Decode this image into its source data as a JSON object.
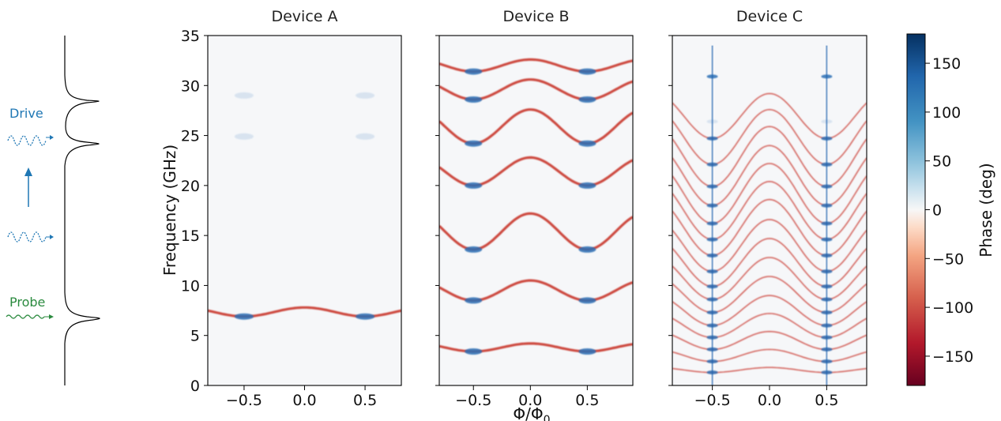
{
  "schematic": {
    "drive_label": "Drive",
    "probe_label": "Probe",
    "drive_color": "#1f77b4",
    "probe_color": "#2a8a3e"
  },
  "colorbar": {
    "label": "Phase (deg)",
    "ticks": [
      "150",
      "100",
      "50",
      "0",
      "−50",
      "−100",
      "−150"
    ],
    "tick_values": [
      150,
      100,
      50,
      0,
      -50,
      -100,
      -150
    ],
    "range": [
      -180,
      180
    ],
    "colormap": "RdBu"
  },
  "shared": {
    "ylabel": "Frequency (GHz)",
    "xlabel": "Φ/Φ₀",
    "yticks": [
      "0",
      "5",
      "10",
      "15",
      "20",
      "25",
      "30",
      "35"
    ],
    "xticks": [
      "−0.5",
      "0.0",
      "0.5"
    ]
  },
  "chart_data": [
    {
      "type": "heatmap",
      "title": "Device A",
      "xlim": [
        -0.8,
        0.8
      ],
      "ylim": [
        0,
        35
      ],
      "bands": [
        {
          "f0": 7.8,
          "amp": 0.9,
          "style": "red"
        },
        {
          "f0": 29.0,
          "amp": 0.0,
          "style": "faint"
        },
        {
          "f0": 24.9,
          "amp": 0.0,
          "style": "faint"
        }
      ],
      "anticrossings": [
        -0.5,
        0.5
      ]
    },
    {
      "type": "heatmap",
      "title": "Device B",
      "xlim": [
        -0.8,
        0.9
      ],
      "ylim": [
        0,
        35
      ],
      "bands": [
        {
          "f0": 4.2,
          "amp": 0.8,
          "style": "red"
        },
        {
          "f0": 10.5,
          "amp": 2.0,
          "style": "red"
        },
        {
          "f0": 17.2,
          "amp": 3.6,
          "style": "red"
        },
        {
          "f0": 22.8,
          "amp": 2.8,
          "style": "red"
        },
        {
          "f0": 27.6,
          "amp": 3.4,
          "style": "red"
        },
        {
          "f0": 30.6,
          "amp": 2.0,
          "style": "red"
        },
        {
          "f0": 32.6,
          "amp": 1.2,
          "style": "red"
        }
      ],
      "anticrossings": [
        -0.5,
        0.5
      ]
    },
    {
      "type": "heatmap",
      "title": "Device C",
      "xlim": [
        -0.85,
        0.85
      ],
      "ylim": [
        0,
        35
      ],
      "bands": [
        {
          "f0": 1.8,
          "amp": 0.5,
          "style": "red"
        },
        {
          "f0": 3.6,
          "amp": 1.2,
          "style": "red"
        },
        {
          "f0": 5.4,
          "amp": 1.8,
          "style": "red"
        },
        {
          "f0": 7.2,
          "amp": 2.4,
          "style": "red"
        },
        {
          "f0": 9.0,
          "amp": 3.0,
          "style": "red"
        },
        {
          "f0": 10.9,
          "amp": 3.6,
          "style": "red"
        },
        {
          "f0": 12.8,
          "amp": 4.2,
          "style": "red"
        },
        {
          "f0": 14.7,
          "amp": 4.8,
          "style": "red"
        },
        {
          "f0": 16.6,
          "amp": 5.2,
          "style": "red"
        },
        {
          "f0": 18.6,
          "amp": 5.6,
          "style": "red"
        },
        {
          "f0": 20.4,
          "amp": 5.8,
          "style": "red"
        },
        {
          "f0": 22.2,
          "amp": 6.0,
          "style": "red"
        },
        {
          "f0": 24.0,
          "amp": 6.0,
          "style": "red"
        },
        {
          "f0": 25.9,
          "amp": 6.0,
          "style": "red"
        },
        {
          "f0": 27.6,
          "amp": 5.5,
          "style": "red"
        },
        {
          "f0": 29.2,
          "amp": 4.5,
          "style": "red"
        },
        {
          "f0": 30.9,
          "amp": 0.0,
          "style": "red"
        },
        {
          "f0": 26.4,
          "amp": 0.0,
          "style": "faint"
        }
      ],
      "anticrossings": [
        -0.5,
        0.5
      ]
    }
  ]
}
